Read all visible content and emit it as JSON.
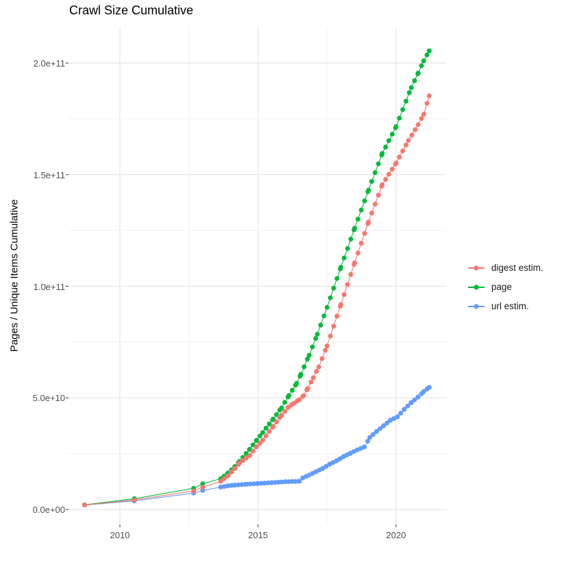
{
  "title": "Crawl Size Cumulative",
  "chart_data": {
    "type": "scatter",
    "title": "Crawl Size Cumulative",
    "xlabel": "",
    "ylabel": "Pages / Unique Items Cumulative",
    "grid": true,
    "legend_position": "right",
    "x_axis": {
      "tick_labels": [
        "2010",
        "2015",
        "2020"
      ],
      "tick_values": [
        2010,
        2015,
        2020
      ],
      "minor_values": [
        2012.5,
        2017.5
      ],
      "range": [
        2008.1,
        2021.85
      ]
    },
    "y_axis": {
      "tick_labels": [
        "0.0e+00",
        "5.0e+10",
        "1.0e+11",
        "1.5e+11",
        "2.0e+11"
      ],
      "tick_values": [
        0,
        50000000000.0,
        100000000000.0,
        150000000000.0,
        200000000000.0
      ],
      "minor_values": [
        25000000000.0,
        75000000000.0,
        125000000000.0,
        175000000000.0
      ],
      "range": [
        -6700000000.0,
        216000000000.0
      ]
    },
    "dot_step_years": 0.12,
    "dense_from_year": 2013.6,
    "series": [
      {
        "name": "digest estim.",
        "color": "#F8766D",
        "points": [
          [
            2008.72,
            2000000000.0
          ],
          [
            2010.52,
            4200000000.0
          ],
          [
            2012.67,
            8300000000.0
          ],
          [
            2013.0,
            10000000000.0
          ],
          [
            2013.65,
            12600000000.0
          ],
          [
            2013.92,
            15200000000.0
          ],
          [
            2014.17,
            18400000000.0
          ],
          [
            2014.33,
            20800000000.0
          ],
          [
            2014.7,
            24200000000.0
          ],
          [
            2014.95,
            28200000000.0
          ],
          [
            2015.17,
            31000000000.0
          ],
          [
            2015.55,
            37200000000.0
          ],
          [
            2015.85,
            42200000000.0
          ],
          [
            2016.1,
            45800000000.0
          ],
          [
            2016.3,
            47600000000.0
          ],
          [
            2016.5,
            49200000000.0
          ],
          [
            2016.65,
            51000000000.0
          ],
          [
            2016.8,
            54200000000.0
          ],
          [
            2017.0,
            59000000000.0
          ],
          [
            2017.2,
            63800000000.0
          ],
          [
            2017.5,
            73200000000.0
          ],
          [
            2018.0,
            91800000000.0
          ],
          [
            2018.5,
            110500000000.0
          ],
          [
            2019.0,
            128800000000.0
          ],
          [
            2019.5,
            145500000000.0
          ],
          [
            2020.0,
            155200000000.0
          ],
          [
            2020.45,
            165300000000.0
          ],
          [
            2020.8,
            172400000000.0
          ],
          [
            2021.0,
            177000000000.0
          ],
          [
            2021.2,
            185300000000.0
          ]
        ]
      },
      {
        "name": "page",
        "color": "#00BA38",
        "points": [
          [
            2008.72,
            2100000000.0
          ],
          [
            2010.52,
            4800000000.0
          ],
          [
            2012.67,
            9500000000.0
          ],
          [
            2013.0,
            11500000000.0
          ],
          [
            2013.65,
            13800000000.0
          ],
          [
            2013.92,
            16300000000.0
          ],
          [
            2014.17,
            19300000000.0
          ],
          [
            2014.33,
            21500000000.0
          ],
          [
            2014.7,
            27000000000.0
          ],
          [
            2014.95,
            31000000000.0
          ],
          [
            2015.17,
            34500000000.0
          ],
          [
            2015.55,
            40500000000.0
          ],
          [
            2015.85,
            45500000000.0
          ],
          [
            2016.12,
            51000000000.0
          ],
          [
            2016.4,
            56500000000.0
          ],
          [
            2016.55,
            60500000000.0
          ],
          [
            2016.85,
            69000000000.0
          ],
          [
            2017.15,
            78500000000.0
          ],
          [
            2017.5,
            90500000000.0
          ],
          [
            2018.0,
            108500000000.0
          ],
          [
            2018.5,
            126000000000.0
          ],
          [
            2019.0,
            143000000000.0
          ],
          [
            2019.5,
            159500000000.0
          ],
          [
            2020.0,
            171500000000.0
          ],
          [
            2020.55,
            189000000000.0
          ],
          [
            2020.8,
            195500000000.0
          ],
          [
            2021.0,
            201000000000.0
          ],
          [
            2021.2,
            205500000000.0
          ]
        ]
      },
      {
        "name": "url estim.",
        "color": "#619CFF",
        "points": [
          [
            2008.72,
            1900000000.0
          ],
          [
            2010.52,
            3800000000.0
          ],
          [
            2012.67,
            7300000000.0
          ],
          [
            2013.0,
            8500000000.0
          ],
          [
            2013.65,
            10000000000.0
          ],
          [
            2013.92,
            10600000000.0
          ],
          [
            2014.17,
            10900000000.0
          ],
          [
            2014.6,
            11300000000.0
          ],
          [
            2015.0,
            11600000000.0
          ],
          [
            2015.5,
            12000000000.0
          ],
          [
            2016.0,
            12400000000.0
          ],
          [
            2016.5,
            12600000000.0
          ],
          [
            2016.62,
            14100000000.0
          ],
          [
            2016.85,
            15400000000.0
          ],
          [
            2017.1,
            16900000000.0
          ],
          [
            2017.35,
            18400000000.0
          ],
          [
            2017.6,
            20300000000.0
          ],
          [
            2017.85,
            21800000000.0
          ],
          [
            2018.1,
            23700000000.0
          ],
          [
            2018.35,
            25200000000.0
          ],
          [
            2018.6,
            26700000000.0
          ],
          [
            2018.85,
            28000000000.0
          ],
          [
            2019.05,
            32300000000.0
          ],
          [
            2019.3,
            35000000000.0
          ],
          [
            2019.55,
            37500000000.0
          ],
          [
            2019.8,
            40000000000.0
          ],
          [
            2020.05,
            41500000000.0
          ],
          [
            2020.3,
            44900000000.0
          ],
          [
            2020.55,
            47900000000.0
          ],
          [
            2020.8,
            50400000000.0
          ],
          [
            2021.0,
            52800000000.0
          ],
          [
            2021.2,
            54700000000.0
          ]
        ]
      }
    ],
    "colors": {
      "grid_major": "#e4e4e4",
      "grid_minor": "#f0f0f0",
      "tick": "#333333"
    }
  }
}
